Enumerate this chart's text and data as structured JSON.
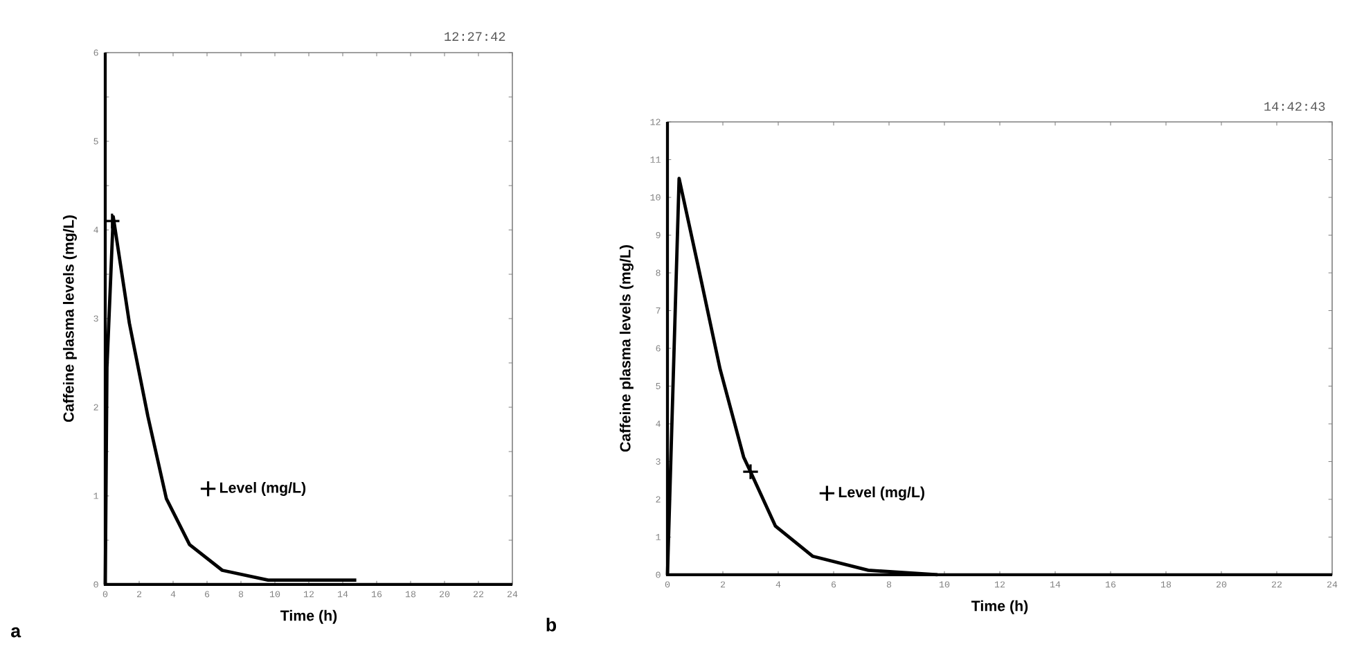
{
  "chart_data": [
    {
      "type": "line",
      "subtitle": "12:27:42",
      "xlabel": "Time (h)",
      "ylabel": "Caffeine plasma levels (mg/L)",
      "xlim": [
        0,
        24
      ],
      "ylim": [
        0,
        6
      ],
      "xticks": [
        0,
        2,
        4,
        6,
        8,
        10,
        12,
        14,
        16,
        18,
        20,
        22,
        24
      ],
      "yticks": [
        0,
        {
          "value": 0.5,
          "label": null
        },
        1,
        {
          "value": 1.5,
          "label": null
        },
        2,
        {
          "value": 2.5,
          "label": null
        },
        3,
        {
          "value": 3.5,
          "label": null
        },
        4,
        {
          "value": 4.5,
          "label": null
        },
        5,
        {
          "value": 5.5,
          "label": null
        },
        6
      ],
      "legend": "bottom left",
      "annotations": [
        "a"
      ],
      "series": [
        {
          "type": "line",
          "color": "#000000",
          "x": [
            0,
            0.1,
            0.47,
            1.42,
            2.51,
            3.6,
            4.97,
            6.9,
            9.6,
            12,
            14.8
          ],
          "values": [
            0,
            2.45,
            4.15,
            2.95,
            1.9,
            0.97,
            0.45,
            0.16,
            0.05,
            0.05,
            0.05
          ]
        },
        {
          "type": "scatter",
          "name": "Level (mg/L)",
          "marker": "cross",
          "color": "#000000",
          "x": [
            0.4
          ],
          "values": [
            4.1
          ]
        }
      ]
    },
    {
      "type": "line",
      "subtitle": "14:42:43",
      "xlabel": "Time (h)",
      "ylabel": "Caffeine plasma levels (mg/L)",
      "xlim": [
        0,
        24
      ],
      "ylim": [
        0,
        12
      ],
      "xticks": [
        0,
        2,
        4,
        6,
        8,
        10,
        12,
        14,
        16,
        18,
        20,
        22,
        24
      ],
      "yticks": [
        0,
        1,
        2,
        3,
        4,
        5,
        6,
        7,
        8,
        9,
        10,
        11,
        12
      ],
      "legend": "bottom left",
      "annotations": [
        "b"
      ],
      "series": [
        {
          "type": "line",
          "color": "#000000",
          "x": [
            0,
            0.42,
            1.08,
            1.9,
            2.75,
            3.0,
            3.9,
            5.25,
            7.25,
            9.75
          ],
          "values": [
            0,
            10.5,
            8.27,
            5.45,
            3.12,
            2.73,
            1.29,
            0.49,
            0.12,
            0
          ]
        },
        {
          "type": "scatter",
          "name": "Level (mg/L)",
          "marker": "cross",
          "color": "#000000",
          "x": [
            3.0
          ],
          "values": [
            2.73
          ]
        }
      ]
    }
  ]
}
